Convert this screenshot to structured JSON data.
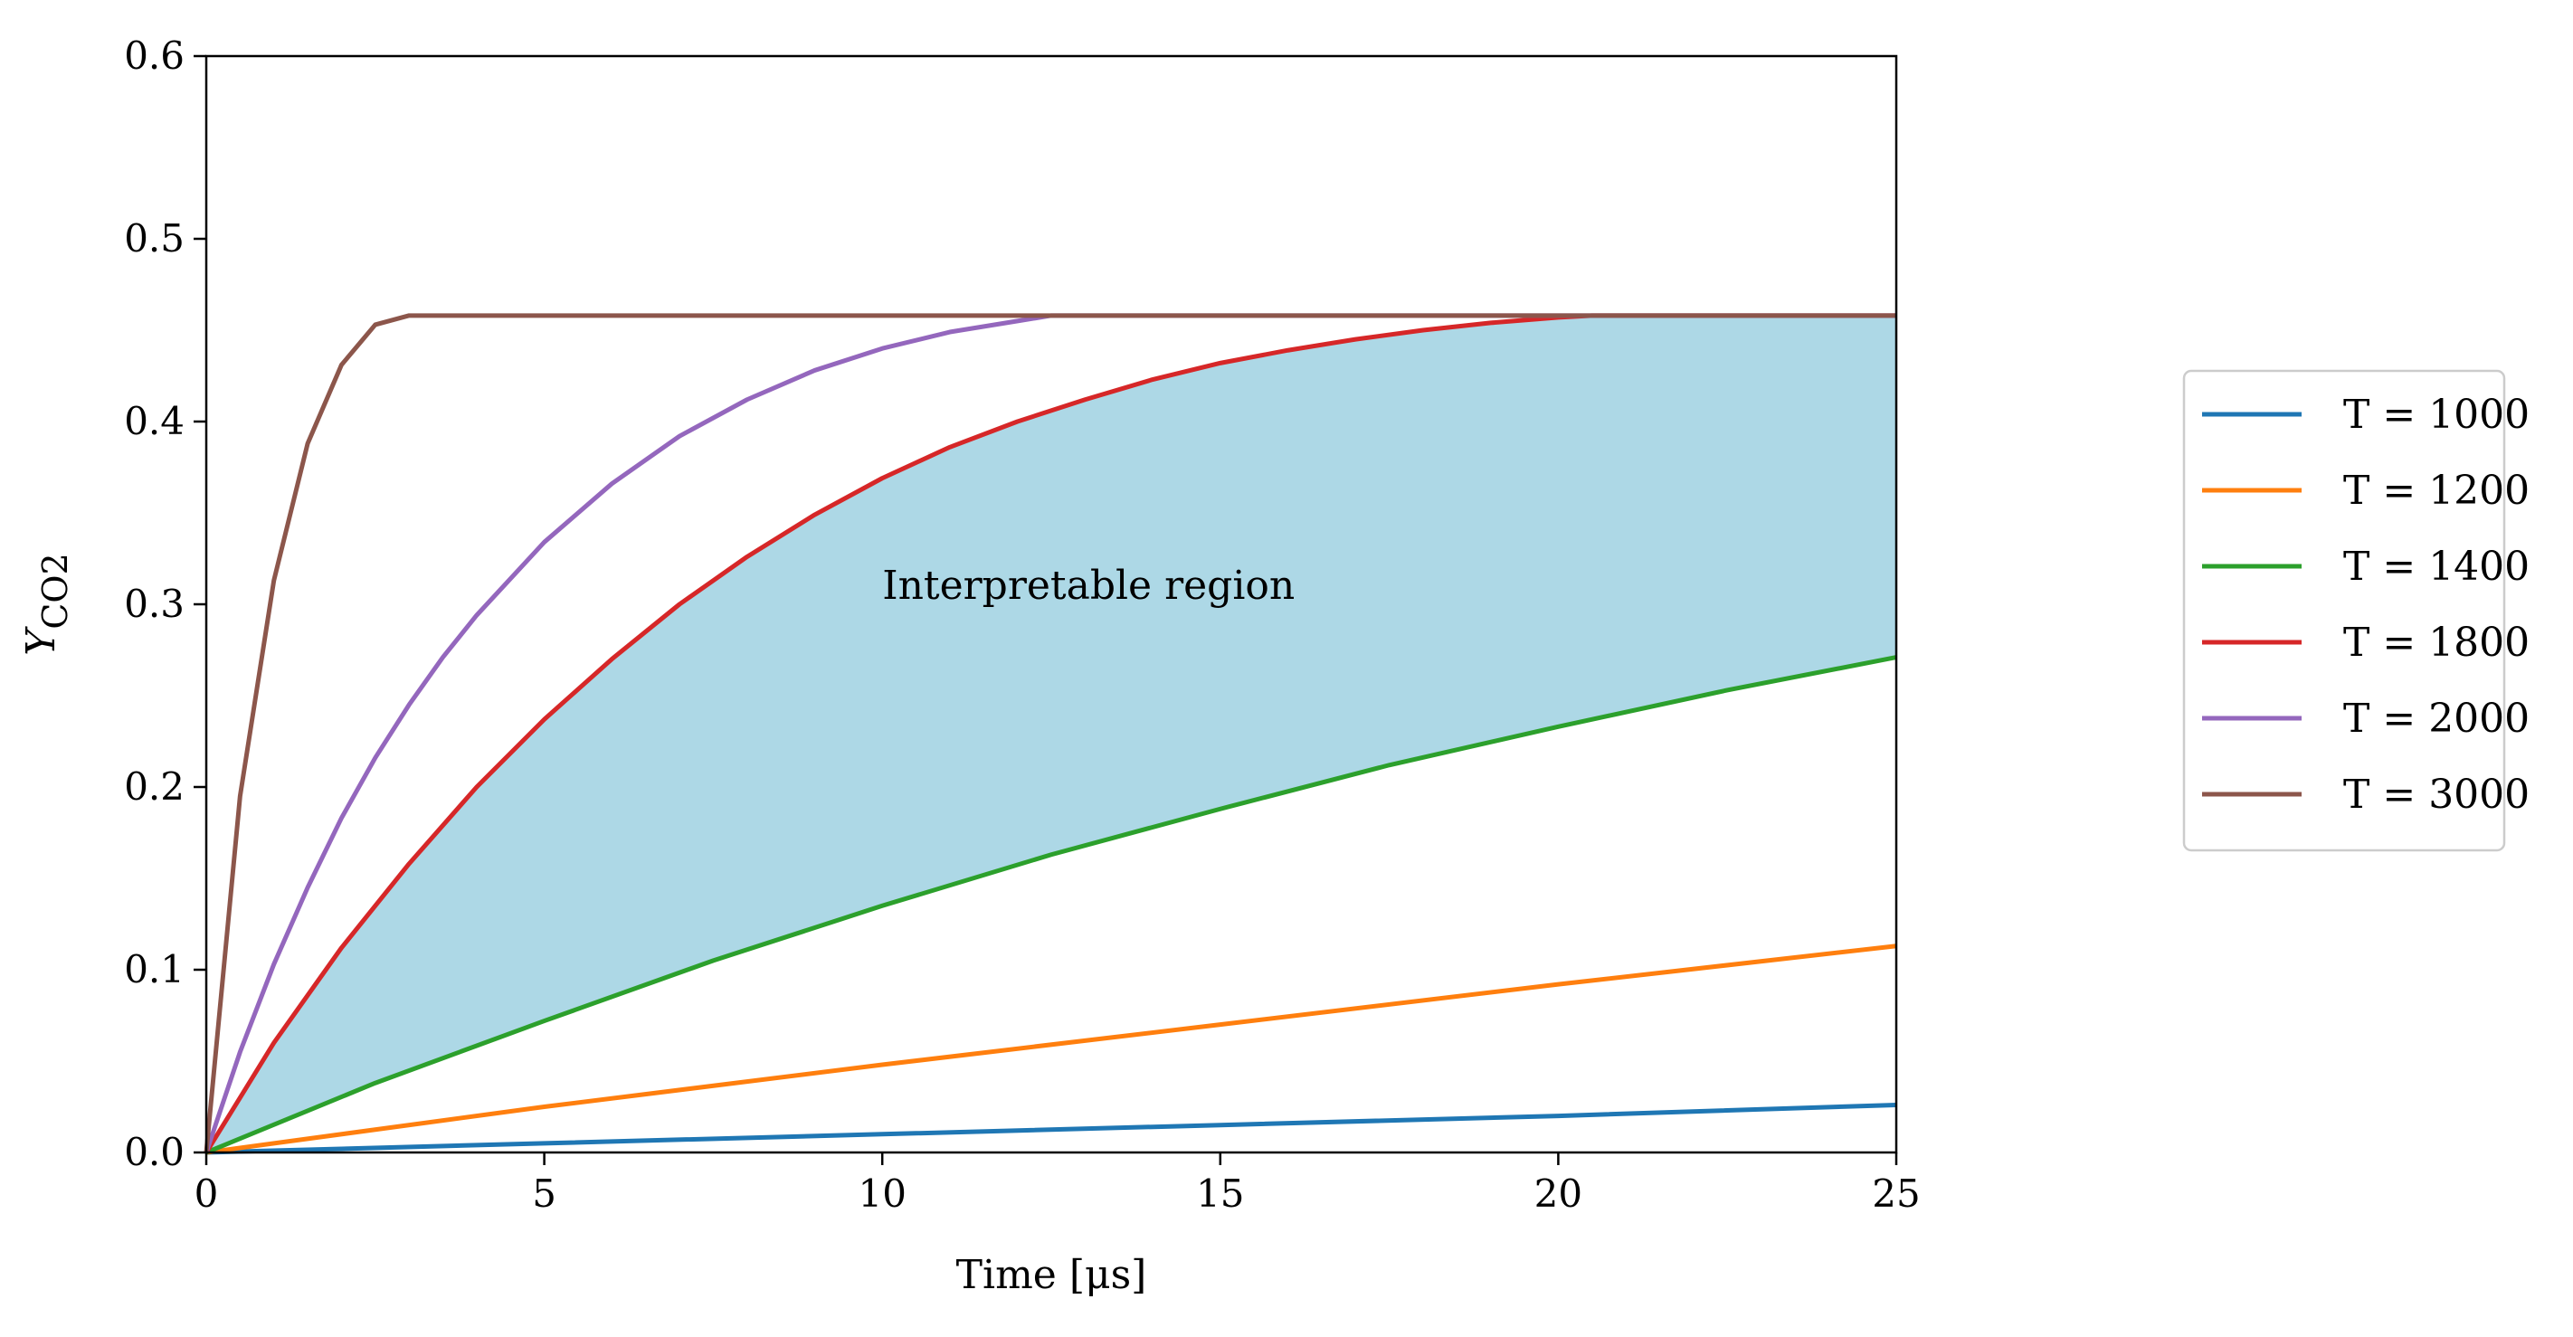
{
  "chart_data": {
    "type": "line",
    "xlabel": "Time [μs]",
    "ylabel": "Y",
    "ylabel_sub": "CO2",
    "xlim": [
      0,
      25
    ],
    "ylim": [
      0,
      0.6
    ],
    "xticks": [
      0,
      5,
      10,
      15,
      20,
      25
    ],
    "yticks": [
      0.0,
      0.1,
      0.2,
      0.3,
      0.4,
      0.5,
      0.6
    ],
    "xtick_labels": [
      "0",
      "5",
      "10",
      "15",
      "20",
      "25"
    ],
    "ytick_labels": [
      "0.0",
      "0.1",
      "0.2",
      "0.3",
      "0.4",
      "0.5",
      "0.6"
    ],
    "grid": false,
    "legend_position": "right-outside",
    "series": [
      {
        "name": "T = 1000",
        "color": "#1f77b4",
        "x": [
          0,
          5,
          10,
          15,
          20,
          25
        ],
        "y": [
          0,
          0.005,
          0.01,
          0.015,
          0.02,
          0.026
        ]
      },
      {
        "name": "T = 1200",
        "color": "#ff7f0e",
        "x": [
          0,
          5,
          10,
          15,
          20,
          25
        ],
        "y": [
          0,
          0.025,
          0.048,
          0.07,
          0.092,
          0.113
        ]
      },
      {
        "name": "T = 1400",
        "color": "#2ca02c",
        "x": [
          0,
          2.5,
          5,
          7.5,
          10,
          12.5,
          15,
          17.5,
          20,
          22.5,
          25
        ],
        "y": [
          0,
          0.038,
          0.072,
          0.105,
          0.135,
          0.163,
          0.188,
          0.212,
          0.233,
          0.253,
          0.271
        ]
      },
      {
        "name": "T = 1800",
        "color": "#d62728",
        "x": [
          0,
          1,
          2,
          3,
          4,
          5,
          6,
          7,
          8,
          9,
          10,
          11,
          12,
          13,
          14,
          15,
          16,
          17,
          18,
          19,
          20,
          20.5,
          21,
          22,
          23,
          24,
          25
        ],
        "y": [
          0,
          0.06,
          0.112,
          0.158,
          0.2,
          0.237,
          0.27,
          0.3,
          0.326,
          0.349,
          0.369,
          0.386,
          0.4,
          0.412,
          0.423,
          0.432,
          0.439,
          0.445,
          0.45,
          0.454,
          0.457,
          0.458,
          0.458,
          0.458,
          0.458,
          0.458,
          0.458
        ]
      },
      {
        "name": "T = 2000",
        "color": "#9467bd",
        "x": [
          0,
          0.5,
          1,
          1.5,
          2,
          2.5,
          3,
          3.5,
          4,
          5,
          6,
          7,
          8,
          9,
          10,
          11,
          12,
          12.5,
          13,
          15,
          20,
          25
        ],
        "y": [
          0,
          0.055,
          0.103,
          0.145,
          0.183,
          0.216,
          0.245,
          0.271,
          0.294,
          0.334,
          0.366,
          0.392,
          0.412,
          0.428,
          0.44,
          0.449,
          0.455,
          0.458,
          0.458,
          0.458,
          0.458,
          0.458
        ]
      },
      {
        "name": "T = 3000",
        "color": "#8c564b",
        "x": [
          0,
          0.5,
          1,
          1.5,
          2,
          2.5,
          3,
          5,
          10,
          15,
          20,
          25
        ],
        "y": [
          0,
          0.195,
          0.313,
          0.388,
          0.431,
          0.453,
          0.458,
          0.458,
          0.458,
          0.458,
          0.458,
          0.458
        ]
      }
    ],
    "fill_region": {
      "between": [
        "T = 1400",
        "T = 1800"
      ],
      "color": "#add8e6"
    },
    "annotations": [
      {
        "text": "Interpretable region",
        "x": 10,
        "y": 0.3
      }
    ]
  }
}
